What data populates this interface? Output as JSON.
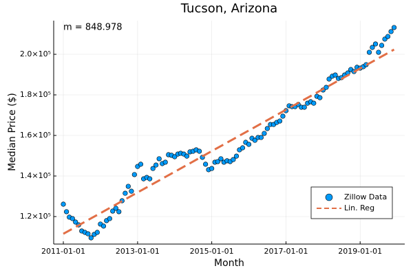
{
  "chart_data": {
    "type": "scatter",
    "title": "Tucson, Arizona",
    "x_label": "Month",
    "y_label": "Median Price ($)",
    "annotation": "m = 848.978",
    "xlim": [
      "2010-09-28",
      "2020-03-15"
    ],
    "xticks": [
      "2011-01-01",
      "2013-01-01",
      "2015-01-01",
      "2017-01-01",
      "2019-01-01"
    ],
    "ylim": [
      106440,
      216610
    ],
    "yticks": [
      {
        "value": 120000,
        "label": "1.2×10⁵"
      },
      {
        "value": 140000,
        "label": "1.4×10⁵"
      },
      {
        "value": 160000,
        "label": "1.6×10⁵"
      },
      {
        "value": 180000,
        "label": "1.8×10⁵"
      },
      {
        "value": 200000,
        "label": "2.0×10⁵"
      }
    ],
    "grid": true,
    "legend": "bottom right",
    "series": [
      {
        "name": "Zillow Data",
        "type": "scatter",
        "color": "#009af9",
        "x": [
          "2011-01-01",
          "2011-02-01",
          "2011-03-01",
          "2011-04-01",
          "2011-05-01",
          "2011-06-01",
          "2011-07-01",
          "2011-08-01",
          "2011-09-01",
          "2011-10-01",
          "2011-11-01",
          "2011-12-01",
          "2012-01-01",
          "2012-02-01",
          "2012-03-01",
          "2012-04-01",
          "2012-05-01",
          "2012-06-01",
          "2012-07-01",
          "2012-08-01",
          "2012-09-01",
          "2012-10-01",
          "2012-11-01",
          "2012-12-01",
          "2013-01-01",
          "2013-02-01",
          "2013-03-01",
          "2013-04-01",
          "2013-05-01",
          "2013-06-01",
          "2013-07-01",
          "2013-08-01",
          "2013-09-01",
          "2013-10-01",
          "2013-11-01",
          "2013-12-01",
          "2014-01-01",
          "2014-02-01",
          "2014-03-01",
          "2014-04-01",
          "2014-05-01",
          "2014-06-01",
          "2014-07-01",
          "2014-08-01",
          "2014-09-01",
          "2014-10-01",
          "2014-11-01",
          "2014-12-01",
          "2015-01-01",
          "2015-02-01",
          "2015-03-01",
          "2015-04-01",
          "2015-05-01",
          "2015-06-01",
          "2015-07-01",
          "2015-08-01",
          "2015-09-01",
          "2015-10-01",
          "2015-11-01",
          "2015-12-01",
          "2016-01-01",
          "2016-02-01",
          "2016-03-01",
          "2016-04-01",
          "2016-05-01",
          "2016-06-01",
          "2016-07-01",
          "2016-08-01",
          "2016-09-01",
          "2016-10-01",
          "2016-11-01",
          "2016-12-01",
          "2017-01-01",
          "2017-02-01",
          "2017-03-01",
          "2017-04-01",
          "2017-05-01",
          "2017-06-01",
          "2017-07-01",
          "2017-08-01",
          "2017-09-01",
          "2017-10-01",
          "2017-11-01",
          "2017-12-01",
          "2018-01-01",
          "2018-02-01",
          "2018-03-01",
          "2018-04-01",
          "2018-05-01",
          "2018-06-01",
          "2018-07-01",
          "2018-08-01",
          "2018-09-01",
          "2018-10-01",
          "2018-11-01",
          "2018-12-01",
          "2019-01-01",
          "2019-02-01",
          "2019-03-01",
          "2019-04-01",
          "2019-05-01",
          "2019-06-01",
          "2019-07-01",
          "2019-08-01",
          "2019-09-01",
          "2019-10-01",
          "2019-11-01",
          "2019-12-01"
        ],
        "values": [
          126100,
          122400,
          119700,
          119000,
          117300,
          115900,
          112900,
          112200,
          111500,
          109500,
          111200,
          112200,
          116300,
          115300,
          118000,
          119000,
          122700,
          124100,
          122400,
          127800,
          131500,
          134900,
          132500,
          140700,
          144700,
          145800,
          138600,
          139300,
          138600,
          143700,
          145400,
          148500,
          146100,
          146800,
          150500,
          150200,
          149500,
          150800,
          151200,
          150800,
          149800,
          151900,
          152200,
          152900,
          152200,
          149200,
          145800,
          143100,
          143700,
          146800,
          147100,
          148500,
          146800,
          147500,
          147100,
          148100,
          149800,
          152900,
          153900,
          156600,
          155600,
          158600,
          157600,
          159000,
          159000,
          161000,
          163400,
          165400,
          165400,
          166400,
          167100,
          169500,
          172200,
          174600,
          174200,
          174200,
          175300,
          173900,
          173900,
          175900,
          176600,
          175900,
          179300,
          178600,
          182400,
          183700,
          187800,
          189200,
          189800,
          188100,
          188500,
          189800,
          190800,
          192500,
          191500,
          193600,
          193200,
          193900,
          194900,
          201000,
          203400,
          205100,
          201000,
          204400,
          207500,
          208800,
          211200,
          213200
        ]
      },
      {
        "name": "Lin. Reg",
        "type": "line",
        "color": "#e26f46",
        "x": [
          "2011-01-01",
          "2019-12-01"
        ],
        "values": [
          111500,
          202341
        ]
      }
    ]
  }
}
